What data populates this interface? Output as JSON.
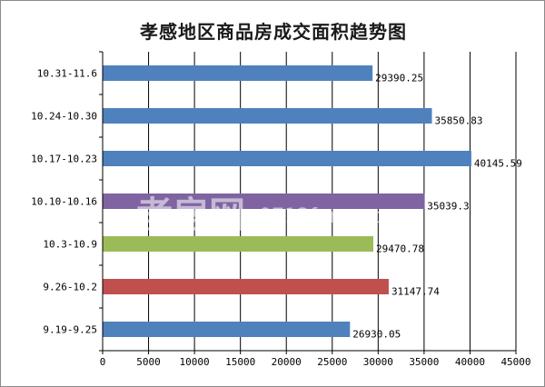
{
  "chart_data": {
    "type": "bar",
    "orientation": "horizontal",
    "title": "孝感地区商品房成交面积趋势图",
    "xlabel": "",
    "ylabel": "",
    "xlim": [
      0,
      45000
    ],
    "ticks": [
      0,
      5000,
      10000,
      15000,
      20000,
      25000,
      30000,
      35000,
      40000,
      45000
    ],
    "tick_labels": [
      "0",
      "5000",
      "10000",
      "15000",
      "20000",
      "25000",
      "30000",
      "35000",
      "40000",
      "45000"
    ],
    "grid": true,
    "legend": "none",
    "categories": [
      "10.31-11.6",
      "10.24-10.30",
      "10.17-10.23",
      "10.10-10.16",
      "10.3-10.9",
      "9.26-10.2",
      "9.19-9.25"
    ],
    "values": [
      29390.25,
      35850.83,
      40145.59,
      35039.3,
      29470.78,
      31147.74,
      26930.05
    ],
    "value_labels": [
      "29390.25",
      "35850.83",
      "40145.59",
      "35039.3",
      "29470.78",
      "31147.74",
      "26930.05"
    ],
    "colors": [
      "#4f81bd",
      "#4f81bd",
      "#4f81bd",
      "#8064a2",
      "#9bbb59",
      "#c0504d",
      "#4f81bd"
    ]
  },
  "watermark": {
    "brand": "孝房网",
    "url": "0712fang.com"
  }
}
